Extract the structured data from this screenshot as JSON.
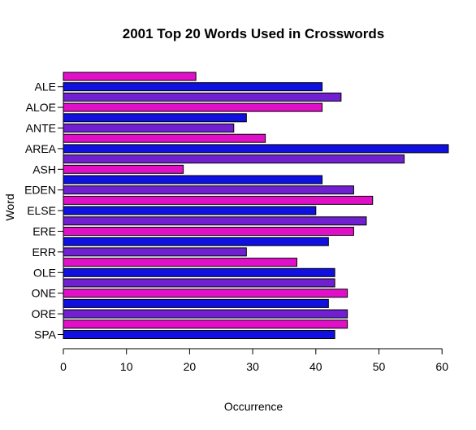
{
  "chart_data": {
    "type": "bar",
    "orientation": "horizontal",
    "title": "2001 Top 20 Words Used in Crosswords",
    "xlabel": "Occurrence",
    "ylabel": "Word",
    "xlim": [
      0,
      61
    ],
    "xticks": [
      0,
      10,
      20,
      30,
      40,
      50,
      60
    ],
    "grid": false,
    "bar_colors": [
      "#1010e0",
      "#e010c8",
      "#7020d0"
    ],
    "bar_border_color": "#000000",
    "y_tick_labels": [
      "ALE",
      "ALOE",
      "ANTE",
      "AREA",
      "ASH",
      "EDEN",
      "ELSE",
      "ERE",
      "ERR",
      "OLE",
      "ONE",
      "ORE",
      "SPA"
    ],
    "values_bottom_to_top": [
      43,
      45,
      45,
      42,
      45,
      43,
      43,
      37,
      29,
      42,
      46,
      48,
      40,
      49,
      46,
      41,
      19,
      54,
      61,
      32,
      27,
      29,
      41,
      44,
      41,
      21
    ]
  }
}
